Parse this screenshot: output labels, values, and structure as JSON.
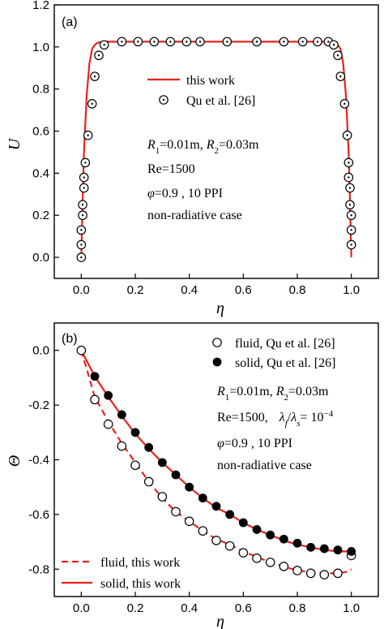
{
  "chart_data": [
    {
      "type": "line",
      "panel_label": "(a)",
      "xlabel": "η",
      "ylabel": "U",
      "xlim": [
        -0.1,
        1.1
      ],
      "ylim": [
        -0.1,
        1.2
      ],
      "xticks": [
        0.0,
        0.2,
        0.4,
        0.6,
        0.8,
        1.0
      ],
      "xtick_labels": [
        "0.0",
        "0.2",
        "0.4",
        "0.6",
        "0.8",
        "1.0"
      ],
      "yticks": [
        0.0,
        0.2,
        0.4,
        0.6,
        0.8,
        1.0,
        1.2
      ],
      "ytick_labels": [
        "0.0",
        "0.2",
        "0.4",
        "0.6",
        "0.8",
        "1.0",
        "1.2"
      ],
      "legend_position": "upper-middle",
      "series": [
        {
          "name": "this work",
          "style": "line",
          "color": "#e8231b",
          "x": [
            0.0,
            0.005,
            0.01,
            0.02,
            0.03,
            0.04,
            0.05,
            0.06,
            0.08,
            0.1,
            0.5,
            0.9,
            0.92,
            0.94,
            0.95,
            0.96,
            0.97,
            0.98,
            0.99,
            0.995,
            1.0
          ],
          "y": [
            0.0,
            0.27,
            0.5,
            0.77,
            0.92,
            0.99,
            1.01,
            1.02,
            1.025,
            1.025,
            1.025,
            1.025,
            1.025,
            1.02,
            1.01,
            0.99,
            0.92,
            0.77,
            0.5,
            0.27,
            0.0
          ]
        },
        {
          "name": "Qu et al. [26]",
          "style": "circle-dot",
          "x": [
            0.0,
            0.0,
            0.0,
            0.005,
            0.005,
            0.01,
            0.01,
            0.015,
            0.025,
            0.04,
            0.05,
            0.065,
            0.085,
            0.15,
            0.21,
            0.27,
            0.33,
            0.39,
            0.44,
            0.54,
            0.65,
            0.75,
            0.82,
            0.875,
            0.915,
            0.935,
            0.95,
            0.96,
            0.975,
            0.985,
            0.99,
            0.99,
            0.995,
            0.995,
            1.0,
            1.0,
            1.0
          ],
          "y": [
            0.0,
            0.06,
            0.13,
            0.2,
            0.25,
            0.33,
            0.38,
            0.45,
            0.58,
            0.73,
            0.86,
            0.96,
            1.01,
            1.025,
            1.025,
            1.025,
            1.025,
            1.025,
            1.025,
            1.025,
            1.025,
            1.025,
            1.025,
            1.025,
            1.025,
            1.01,
            0.96,
            0.86,
            0.73,
            0.58,
            0.45,
            0.38,
            0.33,
            0.25,
            0.2,
            0.13,
            0.06
          ]
        }
      ],
      "annotations": {
        "line1_r1_sym": "R",
        "line1_r1_sub": "1",
        "line1_r1_val": "=0.01m, ",
        "line1_r2_sym": "R",
        "line1_r2_sub": "2",
        "line1_r2_val": "=0.03m",
        "line2": "Re=1500",
        "line3_phi": "φ",
        "line3_rest": "=0.9   , 10 PPI",
        "line4": "non-radiative case"
      }
    },
    {
      "type": "line",
      "panel_label": "(b)",
      "xlabel": "η",
      "ylabel": "Θ",
      "xlim": [
        -0.1,
        1.1
      ],
      "ylim": [
        -0.9,
        0.1
      ],
      "xticks": [
        0.0,
        0.2,
        0.4,
        0.6,
        0.8,
        1.0
      ],
      "xtick_labels": [
        "0.0",
        "0.2",
        "0.4",
        "0.6",
        "0.8",
        "1.0"
      ],
      "yticks": [
        0.0,
        -0.2,
        -0.4,
        -0.6,
        -0.8
      ],
      "ytick_labels": [
        "0.0",
        "-0.2",
        "-0.4",
        "-0.6",
        "-0.8"
      ],
      "series": [
        {
          "name": "fluid, this work",
          "style": "dashed",
          "color": "#e8231b",
          "x": [
            0.0,
            0.05,
            0.1,
            0.15,
            0.2,
            0.25,
            0.3,
            0.35,
            0.4,
            0.45,
            0.5,
            0.55,
            0.6,
            0.65,
            0.7,
            0.75,
            0.8,
            0.85,
            0.9,
            0.95,
            0.98,
            1.0
          ],
          "y": [
            0.0,
            -0.17,
            -0.26,
            -0.34,
            -0.41,
            -0.48,
            -0.54,
            -0.59,
            -0.625,
            -0.66,
            -0.69,
            -0.71,
            -0.735,
            -0.755,
            -0.775,
            -0.79,
            -0.805,
            -0.81,
            -0.815,
            -0.815,
            -0.81,
            -0.8
          ]
        },
        {
          "name": "solid, this work",
          "style": "solid",
          "color": "#e8231b",
          "x": [
            0.0,
            0.05,
            0.1,
            0.15,
            0.2,
            0.25,
            0.3,
            0.35,
            0.4,
            0.45,
            0.5,
            0.55,
            0.6,
            0.65,
            0.7,
            0.75,
            0.8,
            0.85,
            0.9,
            0.95,
            1.0
          ],
          "y": [
            0.0,
            -0.095,
            -0.17,
            -0.24,
            -0.305,
            -0.36,
            -0.41,
            -0.455,
            -0.5,
            -0.54,
            -0.575,
            -0.6,
            -0.63,
            -0.655,
            -0.675,
            -0.695,
            -0.71,
            -0.72,
            -0.73,
            -0.735,
            -0.735
          ]
        },
        {
          "name": "fluid, Qu et al. [26]",
          "style": "open-circle",
          "x": [
            0.0,
            0.05,
            0.1,
            0.15,
            0.2,
            0.25,
            0.3,
            0.35,
            0.4,
            0.45,
            0.5,
            0.55,
            0.6,
            0.65,
            0.7,
            0.75,
            0.8,
            0.85,
            0.9,
            0.95,
            1.0
          ],
          "y": [
            0.0,
            -0.18,
            -0.27,
            -0.35,
            -0.42,
            -0.48,
            -0.535,
            -0.59,
            -0.625,
            -0.66,
            -0.695,
            -0.715,
            -0.74,
            -0.76,
            -0.775,
            -0.79,
            -0.805,
            -0.815,
            -0.82,
            -0.815,
            -0.75
          ]
        },
        {
          "name": "solid, Qu et al. [26]",
          "style": "filled-circle",
          "x": [
            0.05,
            0.1,
            0.15,
            0.2,
            0.25,
            0.3,
            0.35,
            0.4,
            0.45,
            0.5,
            0.55,
            0.6,
            0.65,
            0.7,
            0.75,
            0.8,
            0.85,
            0.9,
            0.95,
            1.0
          ],
          "y": [
            -0.095,
            -0.165,
            -0.235,
            -0.3,
            -0.355,
            -0.41,
            -0.455,
            -0.5,
            -0.54,
            -0.57,
            -0.6,
            -0.63,
            -0.655,
            -0.675,
            -0.69,
            -0.705,
            -0.72,
            -0.725,
            -0.73,
            -0.735
          ]
        }
      ],
      "annotations": {
        "line1_r1_sym": "R",
        "line1_r1_sub": "1",
        "line1_r1_val": "=0.01m, ",
        "line1_r2_sym": "R",
        "line1_r2_sub": "2",
        "line1_r2_val": "=0.03m",
        "line2_re": "Re=1500,",
        "line2_lf": "λ",
        "line2_lf_sub": "f",
        "line2_slash": "/",
        "line2_ls": "λ",
        "line2_ls_sub": "s",
        "line2_eq": "= 10",
        "line2_exp": "−4",
        "line3_phi": "φ",
        "line3_rest": "=0.9   , 10 PPI",
        "line4": "non-radiative case"
      }
    }
  ]
}
